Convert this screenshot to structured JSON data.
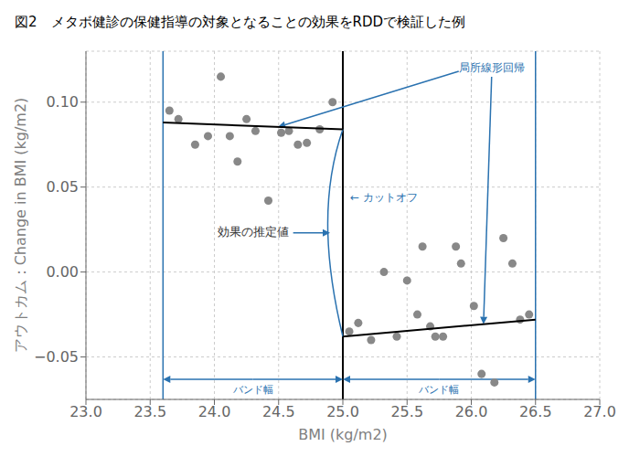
{
  "chart_data": {
    "type": "scatter",
    "title": "図2　メタボ健診の保健指導の対象となることの効果をRDDで検証した例",
    "x_label": "BMI (kg/m2)",
    "y_label": "アウトカム：Change in BMI (kg/m2)",
    "xlim": [
      23,
      27
    ],
    "ylim": [
      -0.075,
      0.13
    ],
    "xticks": [
      {
        "value": 23,
        "label": "23.0"
      },
      {
        "value": 23.5,
        "label": "23.5"
      },
      {
        "value": 24,
        "label": "24.0"
      },
      {
        "value": 24.5,
        "label": "24.5"
      },
      {
        "value": 25,
        "label": "25.0"
      },
      {
        "value": 25.5,
        "label": "25.5"
      },
      {
        "value": 26,
        "label": "26.0"
      },
      {
        "value": 26.5,
        "label": "26.5"
      },
      {
        "value": 27,
        "label": "27.0"
      }
    ],
    "yticks": [
      {
        "value": -0.05,
        "label": "−0.05"
      },
      {
        "value": 0,
        "label": "0.00"
      },
      {
        "value": 0.05,
        "label": "0.05"
      },
      {
        "value": 0.1,
        "label": "0.10"
      }
    ],
    "grid": true,
    "series": [
      {
        "type": "scatter",
        "color": "#888888",
        "x": [
          23.65,
          23.72,
          23.85,
          23.95,
          24.05,
          24.12,
          24.18,
          24.25,
          24.32,
          24.42,
          24.52,
          24.58,
          24.65,
          24.72,
          24.82,
          24.92
        ],
        "values": [
          0.095,
          0.09,
          0.075,
          0.08,
          0.115,
          0.08,
          0.065,
          0.09,
          0.083,
          0.042,
          0.082,
          0.083,
          0.075,
          0.076,
          0.084,
          0.1
        ]
      },
      {
        "type": "scatter",
        "color": "#888888",
        "x": [
          25.05,
          25.12,
          25.22,
          25.32,
          25.42,
          25.5,
          25.58,
          25.62,
          25.68,
          25.72,
          25.78,
          25.88,
          25.92,
          26.02,
          26.08,
          26.18,
          26.25,
          26.32,
          26.38,
          26.45
        ],
        "values": [
          -0.035,
          -0.03,
          -0.04,
          0.0,
          -0.038,
          -0.005,
          -0.025,
          0.015,
          -0.032,
          -0.038,
          -0.038,
          0.015,
          0.005,
          -0.02,
          -0.06,
          -0.065,
          0.02,
          0.005,
          -0.028,
          -0.025
        ]
      },
      {
        "type": "line",
        "color": "#000000",
        "x": [
          23.6,
          25.0
        ],
        "values": [
          0.088,
          0.084
        ]
      },
      {
        "type": "line",
        "color": "#000000",
        "x": [
          25.0,
          26.5
        ],
        "values": [
          -0.038,
          -0.028
        ]
      }
    ],
    "vlines": [
      {
        "x": 25.0,
        "color": "#000000"
      },
      {
        "x": 23.6,
        "color": "#2a72b0"
      },
      {
        "x": 26.5,
        "color": "#2a72b0"
      }
    ],
    "annotations": [
      {
        "text": "効果の推定値",
        "color": "#333333"
      },
      {
        "text": "局所線形回帰",
        "color": "#2a72b0"
      },
      {
        "text": "← カットオフ",
        "color": "#2a72b0"
      },
      {
        "text": "バンド幅",
        "color": "#2a72b0"
      },
      {
        "text": "バンド幅",
        "color": "#2a72b0"
      }
    ]
  }
}
